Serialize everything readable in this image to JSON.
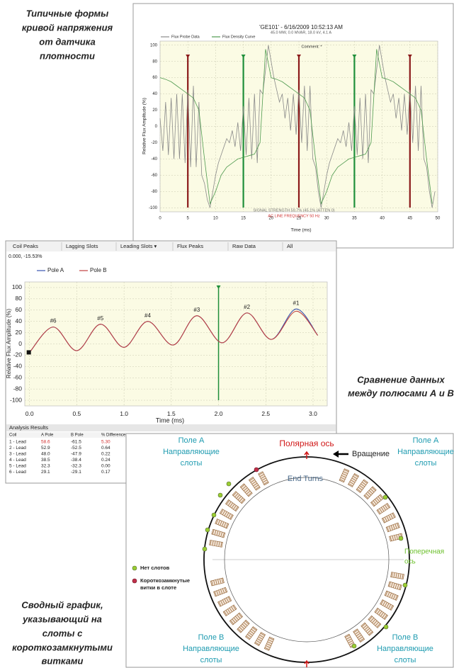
{
  "captions": {
    "top_left": [
      "Типичные формы",
      "кривой напряжения",
      "от датчика",
      "плотности"
    ],
    "middle_right": [
      "Сравнение данных",
      "между полюсами А и В"
    ],
    "bottom_left": [
      "Сводный график,",
      "указывающий на",
      "слоты с",
      "короткозамкнутыми",
      "витками"
    ]
  },
  "chart_data": [
    {
      "type": "line",
      "title": "'GE101' - 6/16/2009 10:52:13 AM",
      "subtitle": "45.0 MW, 0.0 MVAR, 18.0 kV, 4.1 A",
      "comment": "Comment: *",
      "x_label": "Time (ms)",
      "y_label": "Relative Flux Amplitude (%)",
      "xlim": [
        0,
        50
      ],
      "ylim": [
        -105,
        105
      ],
      "xticks": [
        0,
        5,
        10,
        15,
        20,
        25,
        30,
        35,
        40,
        45,
        50
      ],
      "yticks": [
        -100,
        -80,
        -60,
        -40,
        -20,
        0,
        20,
        40,
        60,
        80,
        100
      ],
      "grid": true,
      "smooth": false,
      "series": [
        {
          "name": "Flux Probe Data",
          "color": "#8a8a8a",
          "x": [
            0,
            0.5,
            1,
            1.5,
            2,
            2.5,
            3,
            3.5,
            4,
            4.5,
            5,
            5.5,
            6,
            6.5,
            7,
            7.5,
            8,
            8.5,
            9,
            9.5,
            10,
            10.5,
            11,
            11.5,
            12,
            12.5,
            13,
            13.5,
            14,
            14.5,
            15,
            15.5,
            16,
            16.5,
            17,
            17.5,
            18,
            18.5,
            19,
            19.5,
            20,
            20.5,
            21,
            21.5,
            22,
            22.5,
            23,
            23.5,
            24,
            24.5,
            25,
            25.5,
            26,
            26.5,
            27,
            27.5,
            28,
            28.5,
            29,
            29.5,
            30,
            30.5,
            31,
            31.5,
            32,
            32.5,
            33,
            33.5,
            34,
            34.5,
            35,
            35.5,
            36,
            36.5,
            37,
            37.5,
            38,
            38.5,
            39,
            39.5,
            40,
            40.5,
            41,
            41.5,
            42,
            42.5,
            43,
            43.5,
            44,
            44.5,
            45,
            45.5,
            46,
            46.5,
            47,
            47.5,
            48,
            48.5,
            49,
            49.5
          ],
          "values": [
            10,
            -30,
            30,
            -35,
            35,
            -40,
            40,
            -40,
            40,
            -45,
            45,
            -50,
            50,
            -50,
            30,
            -60,
            -70,
            -90,
            -100,
            -80,
            -60,
            -45,
            -35,
            -25,
            -15,
            -20,
            -5,
            -25,
            5,
            -30,
            25,
            -35,
            35,
            -40,
            40,
            -45,
            45,
            40,
            70,
            100,
            80,
            60,
            45,
            30,
            40,
            10,
            35,
            -5,
            40,
            -10,
            45,
            -20,
            50,
            -30,
            50,
            -40,
            -50,
            -80,
            -100,
            -80,
            -60,
            -45,
            -35,
            -25,
            -15,
            -20,
            -5,
            -25,
            5,
            -30,
            25,
            -35,
            35,
            -40,
            40,
            -45,
            45,
            40,
            70,
            100,
            80,
            60,
            45,
            30,
            40,
            10,
            35,
            -5,
            40,
            -10,
            45,
            -20,
            50,
            -30,
            50,
            -40,
            -50,
            -80,
            -100,
            -80
          ]
        },
        {
          "name": "Flux Density Curve",
          "color": "#4f9a4f",
          "x": [
            0,
            1,
            2,
            3,
            4,
            5,
            6,
            7,
            8,
            9,
            10,
            11,
            12,
            13,
            14,
            15,
            16,
            17,
            18,
            19,
            20,
            21,
            22,
            23,
            24,
            25,
            26,
            27,
            28,
            29,
            30,
            31,
            32,
            33,
            34,
            35,
            36,
            37,
            38,
            39,
            40,
            41,
            42,
            43,
            44,
            45,
            46,
            47,
            48,
            49
          ],
          "values": [
            60,
            58,
            55,
            50,
            45,
            40,
            35,
            20,
            -40,
            -95,
            -80,
            -60,
            -50,
            -45,
            -40,
            -38,
            -36,
            -34,
            -20,
            95,
            60,
            58,
            55,
            50,
            45,
            40,
            35,
            20,
            -40,
            -95,
            -80,
            -60,
            -50,
            -45,
            -40,
            -38,
            -36,
            -34,
            -20,
            95,
            60,
            58,
            55,
            50,
            45,
            40,
            35,
            20,
            -40,
            -95
          ]
        }
      ],
      "markers": [
        {
          "x": 5,
          "color": "#8b1a1a"
        },
        {
          "x": 15,
          "color": "#1f8f3a"
        },
        {
          "x": 25,
          "color": "#8b1a1a"
        },
        {
          "x": 35,
          "color": "#1f8f3a"
        },
        {
          "x": 45,
          "color": "#8b1a1a"
        }
      ],
      "notes": [
        {
          "text": "SIGNAL STRENGTH 59.7% (45.1% (ATTEN 0)",
          "color": "#777777"
        },
        {
          "text": "AC LINE FREQUENCY 50 Hz",
          "color": "#d03030"
        }
      ]
    },
    {
      "type": "line",
      "tabs": [
        "Coil Peaks",
        "Lagging Slots",
        "Leading Slots ▾",
        "Flux Peaks",
        "Raw Data",
        "All"
      ],
      "readout": "0.000, -15.53%",
      "x_label": "Time (ms)",
      "y_label": "Relative Flux Amplitude (%)",
      "xlim": [
        -0.05,
        3.15
      ],
      "ylim": [
        -110,
        110
      ],
      "xticks": [
        {
          "value": 0,
          "label": "0.0"
        },
        {
          "value": 0.5,
          "label": "0.5"
        },
        {
          "value": 1,
          "label": "1.0"
        },
        {
          "value": 1.5,
          "label": "1.5"
        },
        {
          "value": 2,
          "label": "2.0"
        },
        {
          "value": 2.5,
          "label": "2.5"
        },
        {
          "value": 3,
          "label": "3.0"
        }
      ],
      "yticks": [
        -100,
        -80,
        -60,
        -40,
        -20,
        0,
        20,
        40,
        60,
        80,
        100
      ],
      "grid": true,
      "smooth": true,
      "x": [
        0,
        0.25,
        0.5,
        0.75,
        1.0,
        1.25,
        1.52,
        1.77,
        2.04,
        2.3,
        2.56,
        2.82,
        3.05
      ],
      "series": [
        {
          "name": "Pole A",
          "color": "#3a55b0",
          "values": [
            -15,
            30,
            -12,
            35,
            -6,
            40,
            -2,
            50,
            2,
            55,
            8,
            62,
            15
          ]
        },
        {
          "name": "Pole B",
          "color": "#c04040",
          "values": [
            -15,
            30,
            -12,
            35,
            -6,
            40,
            -2,
            50,
            2,
            55,
            8,
            58,
            15
          ]
        }
      ],
      "markers": [
        {
          "x": 2,
          "color": "#1f8f3a"
        }
      ],
      "peaks": [
        {
          "text": "#6",
          "x": 0.25,
          "y": 30
        },
        {
          "text": "#5",
          "x": 0.75,
          "y": 35
        },
        {
          "text": "#4",
          "x": 1.25,
          "y": 40
        },
        {
          "text": "#3",
          "x": 1.77,
          "y": 50
        },
        {
          "text": "#2",
          "x": 2.3,
          "y": 55
        },
        {
          "text": "#1",
          "x": 2.82,
          "y": 62
        }
      ]
    }
  ],
  "table": {
    "title": "Analysis Results",
    "columns": [
      "Coil",
      "A Pole",
      "B Pole",
      "% Difference"
    ],
    "rows": [
      [
        "1 - Lead",
        "58.6",
        "-61.5",
        "5.30"
      ],
      [
        "2 - Lead",
        "52.9",
        "-52.5",
        "0.64"
      ],
      [
        "3 - Lead",
        "48.0",
        "-47.9",
        "0.22"
      ],
      [
        "4 - Lead",
        "38.5",
        "-38.4",
        "0.24"
      ],
      [
        "5 - Lead",
        "32.3",
        "-32.3",
        "0.00"
      ],
      [
        "6 - Lead",
        "29.1",
        "-29.1",
        "0.17"
      ]
    ]
  },
  "diagram": {
    "pole_axis": "Полярная ось",
    "rotation": "Вращение",
    "end_turns": "End Turns",
    "quadrature_axis": [
      "Поперечная",
      "ось"
    ],
    "field_a_left": [
      "Поле A",
      "Направляющие",
      "слоты"
    ],
    "field_a_right": [
      "Поле A",
      "Направляющие",
      "слоты"
    ],
    "field_b_left": [
      "Поле B",
      "Направляющие",
      "слоты"
    ],
    "field_b_right": [
      "Поле B",
      "Направляющие",
      "слоты"
    ],
    "legend": [
      {
        "text": [
          "Нет слотов"
        ]
      },
      {
        "text": [
          "Короткозамкнутые",
          "витки в слоте"
        ]
      }
    ]
  }
}
